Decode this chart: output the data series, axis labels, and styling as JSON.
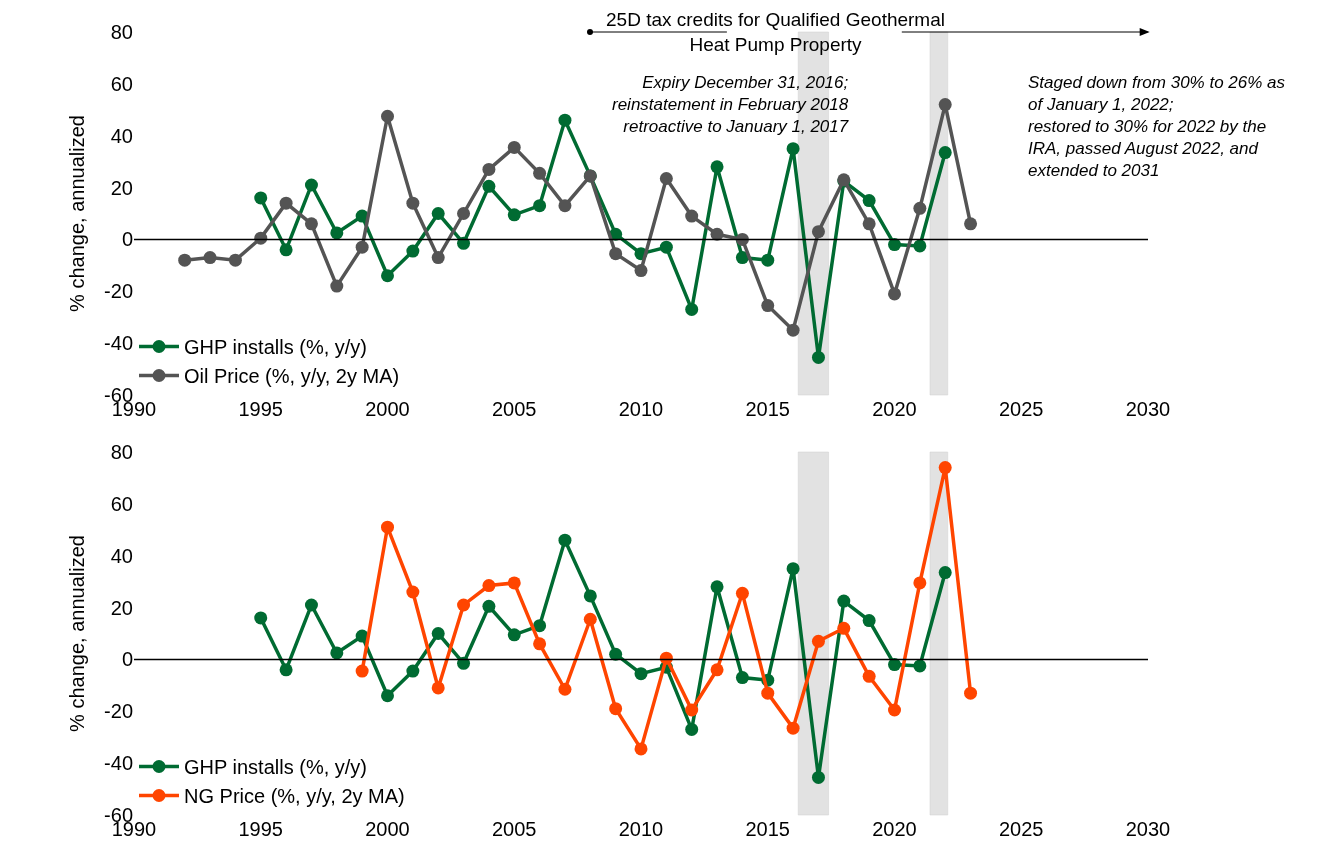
{
  "chart_data": [
    {
      "type": "line",
      "ylabel": "% change, annualized",
      "xlim": [
        1990,
        2030
      ],
      "xticks": [
        1990,
        1995,
        2000,
        2005,
        2010,
        2015,
        2020,
        2025,
        2030
      ],
      "ylim": [
        -60,
        80
      ],
      "yticks": [
        -60,
        -40,
        -20,
        0,
        20,
        40,
        60,
        80
      ],
      "grid": false,
      "legend": "bottom left",
      "marker": "circle",
      "line_style": "solid",
      "series": [
        {
          "name": "GHP installs (%, y/y)",
          "color": "#006b32",
          "x": [
            1995,
            1996,
            1997,
            1998,
            1999,
            2000,
            2001,
            2002,
            2003,
            2004,
            2005,
            2006,
            2007,
            2008,
            2009,
            2010,
            2011,
            2012,
            2013,
            2014,
            2015,
            2016,
            2017,
            2018,
            2019,
            2020,
            2021,
            2022
          ],
          "values": [
            16,
            -4,
            21,
            2.5,
            9,
            -14,
            -4.5,
            10,
            -1.5,
            20.5,
            9.5,
            13,
            46,
            24.5,
            2,
            -5.5,
            -3,
            -27,
            28,
            -7,
            -8,
            35,
            -45.5,
            22.5,
            15,
            -2,
            -2.5,
            33.5
          ]
        },
        {
          "name": "Oil Price (%, y/y, 2y MA)",
          "color": "#545454",
          "x": [
            1992,
            1993,
            1994,
            1995,
            1996,
            1997,
            1998,
            1999,
            2000,
            2001,
            2002,
            2003,
            2004,
            2005,
            2006,
            2007,
            2008,
            2009,
            2010,
            2011,
            2012,
            2013,
            2014,
            2015,
            2016,
            2017,
            2018,
            2019,
            2020,
            2021,
            2022,
            2023
          ],
          "values": [
            -8,
            -7,
            -8,
            0.5,
            14,
            6,
            -18,
            -3,
            47.5,
            14,
            -7,
            10,
            27,
            35.5,
            25.5,
            13,
            24.5,
            -5.5,
            -12,
            23.5,
            9,
            2,
            0,
            -25.5,
            -35,
            3,
            23,
            6,
            -21,
            12,
            52,
            6
          ]
        }
      ],
      "bands": [
        {
          "axis": "x",
          "from": 2016.2,
          "to": 2017.4,
          "color": "#d0d0d0"
        },
        {
          "axis": "x",
          "from": 2021.4,
          "to": 2022.1,
          "color": "#d0d0d0"
        }
      ],
      "ref_lines": [
        {
          "axis": "y",
          "value": 0,
          "color": "#000000"
        }
      ],
      "annotations": [
        "25D tax credits for Qualified Geothermal\nHeat Pump Property",
        "Expiry December 31, 2016;\nreinstatement in February 2018\nretroactive to January 1, 2017",
        "Staged down from 30% to 26% as\nof January 1, 2022;\nrestored to 30% for 2022 by the\nIRA, passed August 2022, and\nextended to 2031"
      ]
    },
    {
      "type": "line",
      "ylabel": "% change, annualized",
      "xlim": [
        1990,
        2030
      ],
      "xticks": [
        1990,
        1995,
        2000,
        2005,
        2010,
        2015,
        2020,
        2025,
        2030
      ],
      "ylim": [
        -60,
        80
      ],
      "yticks": [
        -60,
        -40,
        -20,
        0,
        20,
        40,
        60,
        80
      ],
      "grid": false,
      "legend": "bottom left",
      "marker": "circle",
      "line_style": "solid",
      "series": [
        {
          "name": "GHP installs (%, y/y)",
          "color": "#006b32",
          "x": [
            1995,
            1996,
            1997,
            1998,
            1999,
            2000,
            2001,
            2002,
            2003,
            2004,
            2005,
            2006,
            2007,
            2008,
            2009,
            2010,
            2011,
            2012,
            2013,
            2014,
            2015,
            2016,
            2017,
            2018,
            2019,
            2020,
            2021,
            2022
          ],
          "values": [
            16,
            -4,
            21,
            2.5,
            9,
            -14,
            -4.5,
            10,
            -1.5,
            20.5,
            9.5,
            13,
            46,
            24.5,
            2,
            -5.5,
            -3,
            -27,
            28,
            -7,
            -8,
            35,
            -45.5,
            22.5,
            15,
            -2,
            -2.5,
            33.5
          ]
        },
        {
          "name": "NG Price (%, y/y, 2y MA)",
          "color": "#ff4500",
          "x": [
            1999,
            2000,
            2001,
            2002,
            2003,
            2004,
            2005,
            2006,
            2007,
            2008,
            2009,
            2010,
            2011,
            2012,
            2013,
            2014,
            2015,
            2016,
            2017,
            2018,
            2019,
            2020,
            2021,
            2022,
            2023
          ],
          "values": [
            -4.5,
            51,
            26,
            -11,
            21,
            28.5,
            29.5,
            6,
            -11.5,
            15.5,
            -19,
            -34.5,
            0.5,
            -19.5,
            -4,
            25.5,
            -13,
            -26.5,
            7,
            12,
            -6.5,
            -19.5,
            29.5,
            74,
            -13
          ]
        }
      ],
      "bands": [
        {
          "axis": "x",
          "from": 2016.2,
          "to": 2017.4,
          "color": "#d0d0d0"
        },
        {
          "axis": "x",
          "from": 2021.4,
          "to": 2022.1,
          "color": "#d0d0d0"
        }
      ],
      "ref_lines": [
        {
          "axis": "y",
          "value": 0,
          "color": "#000000"
        }
      ]
    }
  ]
}
